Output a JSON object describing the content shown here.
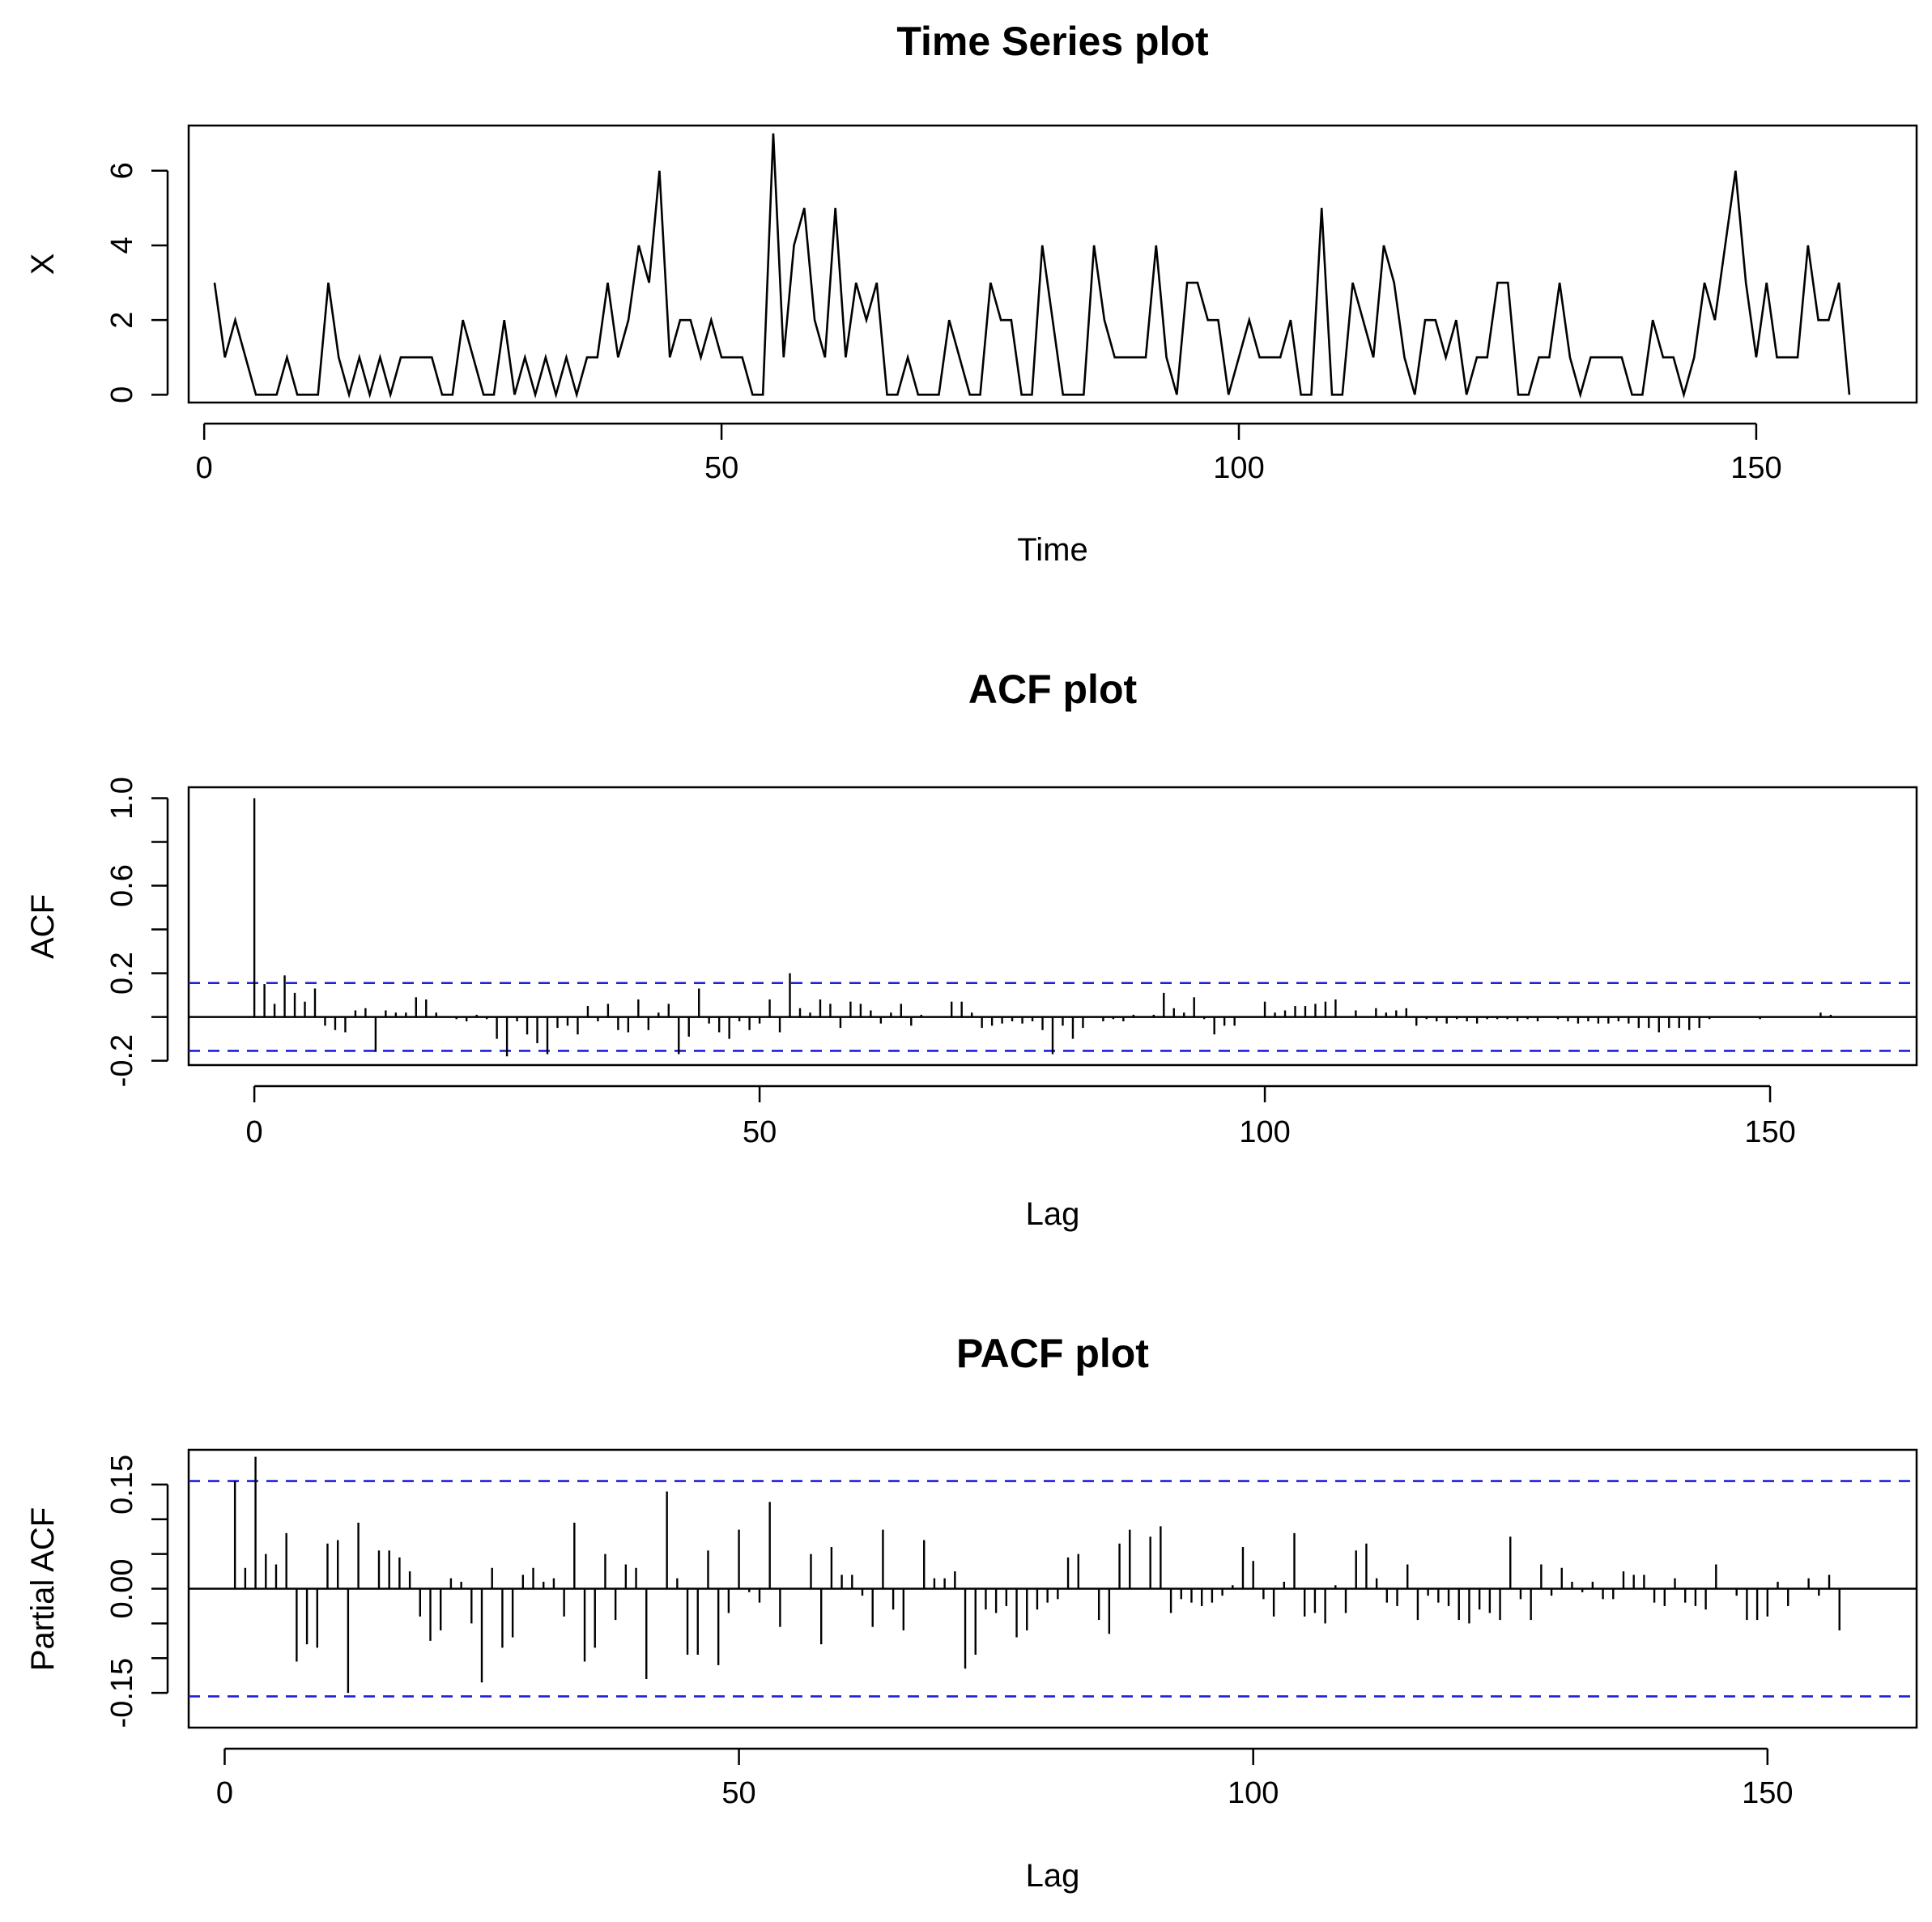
{
  "chart_data": [
    {
      "type": "line",
      "title": "Time Series plot",
      "xlabel": "Time",
      "ylabel": "X",
      "xlim": [
        -1.5,
        165.5
      ],
      "ylim": [
        -0.21,
        7.21
      ],
      "x_ticks": [
        0,
        50,
        100,
        150
      ],
      "x_tick_labels": [
        "0",
        "50",
        "100",
        "150"
      ],
      "y_ticks": [
        0,
        2,
        4,
        6
      ],
      "y_tick_labels": [
        "0",
        "2",
        "4",
        "6"
      ],
      "x_start": 1,
      "values": [
        3,
        1,
        2,
        1,
        0,
        0,
        0,
        1,
        0,
        0,
        0,
        3,
        1,
        0,
        1,
        0,
        1,
        0,
        1,
        1,
        1,
        1,
        0,
        0,
        2,
        1,
        0,
        0,
        2,
        0,
        1,
        0,
        1,
        0,
        1,
        0,
        1,
        1,
        3,
        1,
        2,
        4,
        3,
        6,
        1,
        2,
        2,
        1,
        2,
        1,
        1,
        1,
        0,
        0,
        7,
        1,
        4,
        5,
        2,
        1,
        5,
        1,
        3,
        2,
        3,
        0,
        0,
        1,
        0,
        0,
        0,
        2,
        1,
        0,
        0,
        3,
        2,
        2,
        0,
        0,
        4,
        2,
        0,
        0,
        0,
        4,
        2,
        1,
        1,
        1,
        1,
        4,
        1,
        0,
        3,
        3,
        2,
        2,
        0,
        1,
        2,
        1,
        1,
        1,
        2,
        0,
        0,
        5,
        0,
        0,
        3,
        2,
        1,
        4,
        3,
        1,
        0,
        2,
        2,
        1,
        2,
        0,
        1,
        1,
        3,
        3,
        0,
        0,
        1,
        1,
        3,
        1,
        0,
        1,
        1,
        1,
        1,
        0,
        0,
        2,
        1,
        1,
        0,
        1,
        3,
        2,
        4,
        6,
        3,
        1,
        3,
        1,
        1,
        1,
        4,
        2,
        2,
        3,
        0
      ]
    },
    {
      "type": "bar",
      "title": "ACF plot",
      "xlabel": "Lag",
      "ylabel": "ACF",
      "xlim": [
        -6.5,
        164.5
      ],
      "ylim": [
        -0.22,
        1.05
      ],
      "x_ticks": [
        0,
        50,
        100,
        150
      ],
      "x_tick_labels": [
        "0",
        "50",
        "100",
        "150"
      ],
      "y_ticks": [
        -0.2,
        0.2,
        0.6,
        1.0
      ],
      "y_tick_labels": [
        "-0.2",
        "0.2",
        "0.6",
        "1.0"
      ],
      "y_minor_ticks": [
        -0.2,
        0.0,
        0.2,
        0.4,
        0.6,
        0.8,
        1.0
      ],
      "confidence_bound": 0.155,
      "lag_start": 0,
      "values": [
        1.0,
        0.15,
        0.06,
        0.19,
        0.11,
        0.07,
        0.13,
        -0.04,
        -0.06,
        -0.07,
        0.03,
        0.04,
        -0.16,
        0.03,
        0.02,
        0.02,
        0.09,
        0.08,
        0.02,
        0.0,
        -0.01,
        -0.02,
        0.01,
        -0.01,
        -0.1,
        -0.18,
        -0.02,
        -0.08,
        -0.12,
        -0.17,
        -0.05,
        -0.04,
        -0.08,
        0.05,
        -0.02,
        0.06,
        -0.06,
        -0.07,
        0.08,
        -0.06,
        0.02,
        0.06,
        -0.17,
        -0.09,
        0.13,
        -0.03,
        -0.07,
        -0.1,
        -0.02,
        -0.06,
        -0.03,
        0.08,
        -0.07,
        0.2,
        0.04,
        0.02,
        0.08,
        0.06,
        -0.05,
        0.07,
        0.06,
        0.03,
        -0.03,
        0.02,
        0.06,
        -0.04,
        0.01,
        0.0,
        0.0,
        0.07,
        0.07,
        0.02,
        -0.05,
        -0.04,
        -0.03,
        -0.02,
        -0.03,
        -0.02,
        -0.06,
        -0.17,
        -0.04,
        -0.1,
        -0.05,
        0.0,
        -0.02,
        -0.01,
        -0.02,
        0.01,
        0.0,
        0.01,
        0.11,
        0.04,
        0.02,
        0.09,
        -0.01,
        -0.08,
        -0.04,
        -0.04,
        0.0,
        0.0,
        0.07,
        0.02,
        0.03,
        0.05,
        0.05,
        0.06,
        0.07,
        0.08,
        0.0,
        0.03,
        0.0,
        0.04,
        0.02,
        0.03,
        0.04,
        -0.04,
        -0.01,
        -0.02,
        -0.03,
        -0.01,
        -0.02,
        -0.03,
        -0.01,
        -0.01,
        -0.01,
        -0.02,
        -0.01,
        -0.02,
        0.0,
        -0.01,
        -0.02,
        -0.03,
        -0.02,
        -0.03,
        -0.03,
        -0.02,
        -0.03,
        -0.05,
        -0.05,
        -0.07,
        -0.05,
        -0.05,
        -0.06,
        -0.05,
        -0.01,
        0.0,
        0.0,
        0.0,
        0.0,
        -0.01,
        0.0,
        0.0,
        0.0,
        0.0,
        0.0,
        0.02,
        0.01,
        0.0,
        0.0,
        0.0
      ]
    },
    {
      "type": "bar",
      "title": "PACF plot",
      "xlabel": "Lag",
      "ylabel": "Partial ACF",
      "xlim": [
        -3.5,
        164.5
      ],
      "ylim": [
        -0.2,
        0.2
      ],
      "x_ticks": [
        0,
        50,
        100,
        150
      ],
      "x_tick_labels": [
        "0",
        "50",
        "100",
        "150"
      ],
      "y_ticks": [
        -0.15,
        0.0,
        0.15
      ],
      "y_tick_labels": [
        "-0.15",
        "0.00",
        "0.15"
      ],
      "y_minor_ticks": [
        -0.15,
        -0.1,
        -0.05,
        0.0,
        0.05,
        0.1,
        0.15
      ],
      "confidence_bound": 0.155,
      "lag_start": 1,
      "values": [
        0.155,
        0.03,
        0.19,
        0.05,
        0.035,
        0.08,
        -0.105,
        -0.08,
        -0.085,
        0.065,
        0.07,
        -0.15,
        0.095,
        0.0,
        0.055,
        0.055,
        0.045,
        0.025,
        -0.04,
        -0.075,
        -0.06,
        0.015,
        0.01,
        -0.05,
        -0.135,
        0.03,
        -0.085,
        -0.07,
        0.02,
        0.03,
        0.01,
        0.015,
        -0.04,
        0.095,
        -0.105,
        -0.085,
        0.05,
        -0.045,
        0.035,
        0.03,
        -0.13,
        0.0,
        0.14,
        0.015,
        -0.095,
        -0.095,
        0.055,
        -0.11,
        -0.035,
        0.085,
        -0.005,
        -0.02,
        0.125,
        -0.055,
        0.0,
        0.0,
        0.05,
        -0.08,
        0.06,
        0.02,
        0.02,
        -0.01,
        -0.055,
        0.085,
        -0.03,
        -0.06,
        0.0,
        0.07,
        0.015,
        0.015,
        0.025,
        -0.115,
        -0.095,
        -0.03,
        -0.035,
        -0.025,
        -0.07,
        -0.06,
        -0.03,
        -0.02,
        -0.015,
        0.045,
        0.05,
        0.0,
        -0.045,
        -0.065,
        0.065,
        0.085,
        0.0,
        0.075,
        0.09,
        -0.035,
        -0.015,
        -0.02,
        -0.025,
        -0.02,
        -0.01,
        0.005,
        0.06,
        0.04,
        -0.015,
        -0.04,
        0.01,
        0.08,
        -0.04,
        -0.035,
        -0.05,
        0.005,
        -0.035,
        0.055,
        0.065,
        0.015,
        -0.02,
        -0.025,
        0.035,
        -0.045,
        -0.01,
        -0.02,
        -0.025,
        -0.045,
        -0.05,
        -0.03,
        -0.035,
        -0.045,
        0.075,
        -0.015,
        -0.045,
        0.035,
        -0.01,
        0.03,
        0.01,
        -0.005,
        0.01,
        -0.015,
        -0.015,
        0.025,
        0.02,
        0.02,
        -0.02,
        -0.025,
        0.015,
        -0.02,
        -0.025,
        -0.03,
        0.035,
        0.0,
        -0.01,
        -0.045,
        -0.045,
        -0.04,
        0.01,
        -0.025,
        0.0,
        0.015,
        -0.01,
        0.02,
        -0.06
      ]
    }
  ]
}
